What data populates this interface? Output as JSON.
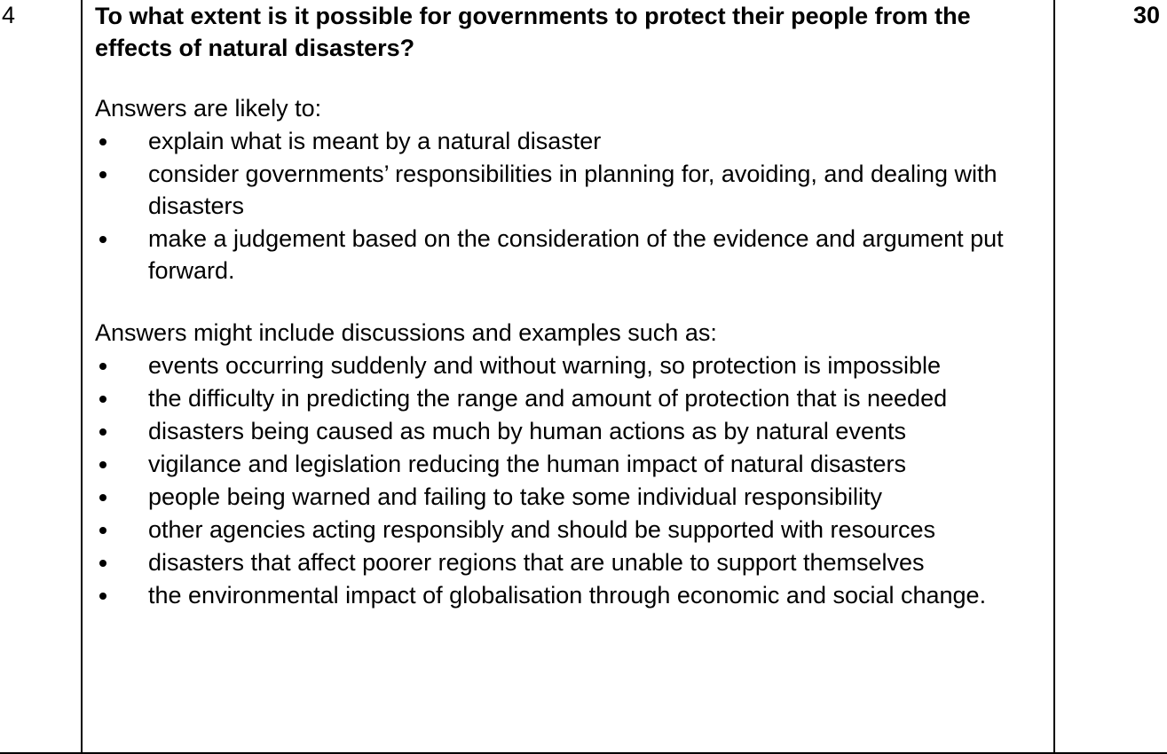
{
  "row": {
    "question_number": "4",
    "marks": "30",
    "question": "To what extent is it possible for governments to protect their people from the effects of natural disasters?",
    "likely": {
      "intro": "Answers are likely to:",
      "items": [
        "explain what is meant by a natural disaster",
        "consider governments’ responsibilities in planning for, avoiding, and dealing with disasters",
        "make a judgement based on the consideration of the evidence and argument put forward."
      ]
    },
    "examples": {
      "intro": "Answers might include discussions and examples such as:",
      "items": [
        "events occurring suddenly and without warning, so protection is impossible",
        "the difficulty in predicting the range and amount of protection that is needed",
        "disasters being caused as much by human actions as by natural events",
        "vigilance and legislation reducing the human impact of natural disasters",
        "people being warned and failing to take some individual responsibility",
        "other agencies acting responsibly and should be supported with resources",
        "disasters that affect poorer regions that are unable to support themselves",
        "the environmental impact of globalisation through economic and social change."
      ]
    }
  }
}
